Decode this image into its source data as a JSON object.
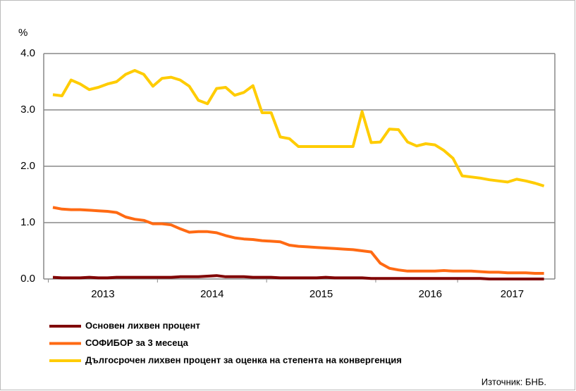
{
  "chart_data": {
    "type": "line",
    "y_label": "%",
    "source": "Източник: БНБ.",
    "categories": [
      null,
      null,
      null,
      null,
      null,
      null,
      "2013",
      null,
      null,
      null,
      null,
      null,
      null,
      null,
      null,
      null,
      null,
      null,
      "2014",
      null,
      null,
      null,
      null,
      null,
      null,
      null,
      null,
      null,
      null,
      null,
      "2015",
      null,
      null,
      null,
      null,
      null,
      null,
      null,
      null,
      null,
      null,
      null,
      "2016",
      null,
      null,
      null,
      null,
      null,
      null,
      null,
      null,
      "2017",
      null,
      null,
      null
    ],
    "ylim": [
      0,
      4
    ],
    "yticks": [
      {
        "value": 0,
        "label": "0.0"
      },
      {
        "value": 1,
        "label": "1.0"
      },
      {
        "value": 2,
        "label": "2.0"
      },
      {
        "value": 3,
        "label": "3.0"
      },
      {
        "value": 4,
        "label": "4.0"
      }
    ],
    "grid": true,
    "legend": "bottom",
    "series": [
      {
        "name": "Основен лихвен процент",
        "color": "#800000",
        "values": [
          0.03,
          0.02,
          0.02,
          0.02,
          0.03,
          0.02,
          0.02,
          0.03,
          0.03,
          0.03,
          0.03,
          0.03,
          0.03,
          0.03,
          0.04,
          0.04,
          0.04,
          0.05,
          0.06,
          0.04,
          0.04,
          0.04,
          0.03,
          0.03,
          0.03,
          0.02,
          0.02,
          0.02,
          0.02,
          0.02,
          0.03,
          0.02,
          0.02,
          0.02,
          0.02,
          0.01,
          0.01,
          0.01,
          0.01,
          0.01,
          0.01,
          0.01,
          0.01,
          0.01,
          0.01,
          0.01,
          0.01,
          0.01,
          0,
          0,
          0,
          0,
          0,
          0,
          0
        ]
      },
      {
        "name": "СОФИБОР за 3 месеца",
        "color": "#ff6a13",
        "values": [
          1.27,
          1.24,
          1.23,
          1.23,
          1.22,
          1.21,
          1.2,
          1.18,
          1.1,
          1.06,
          1.04,
          0.98,
          0.98,
          0.96,
          0.89,
          0.83,
          0.84,
          0.84,
          0.82,
          0.77,
          0.73,
          0.71,
          0.7,
          0.68,
          0.67,
          0.66,
          0.6,
          0.58,
          0.57,
          0.56,
          0.55,
          0.54,
          0.53,
          0.52,
          0.5,
          0.48,
          0.28,
          0.19,
          0.16,
          0.14,
          0.14,
          0.14,
          0.14,
          0.15,
          0.14,
          0.14,
          0.14,
          0.13,
          0.12,
          0.12,
          0.11,
          0.11,
          0.11,
          0.1,
          0.1
        ]
      },
      {
        "name": "Дългосрочен лихвен процент за оценка на степента на конвергенция",
        "color": "#ffcc00",
        "values": [
          3.27,
          3.25,
          3.53,
          3.46,
          3.36,
          3.4,
          3.46,
          3.5,
          3.63,
          3.7,
          3.63,
          3.42,
          3.56,
          3.58,
          3.53,
          3.42,
          3.17,
          3.11,
          3.38,
          3.4,
          3.26,
          3.31,
          3.43,
          2.95,
          2.95,
          2.52,
          2.49,
          2.35,
          2.35,
          2.35,
          2.35,
          2.35,
          2.35,
          2.35,
          2.97,
          2.42,
          2.43,
          2.66,
          2.65,
          2.43,
          2.36,
          2.4,
          2.38,
          2.28,
          2.14,
          1.83,
          1.81,
          1.79,
          1.76,
          1.74,
          1.72,
          1.77,
          1.74,
          1.7,
          1.65
        ]
      }
    ]
  }
}
